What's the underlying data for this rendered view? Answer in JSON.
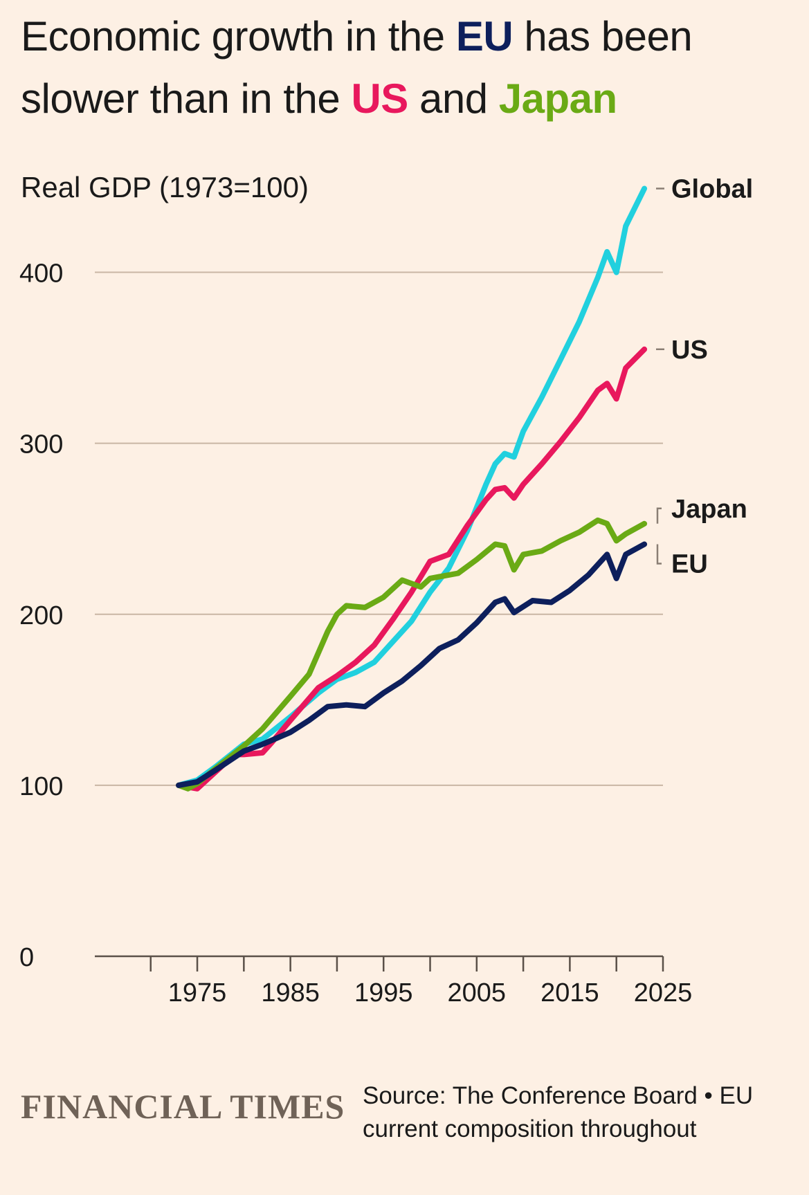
{
  "title": {
    "part1": "Economic growth in the ",
    "eu": "EU",
    "part2": " has been slower than in the ",
    "us": "US",
    "part3": " and ",
    "japan": "Japan"
  },
  "subtitle": "Real GDP (1973=100)",
  "brand": "FINANCIAL TIMES",
  "source": "Source: The Conference Board • EU current composition throughout",
  "colors": {
    "background": "#fdf0e4",
    "eu": "#0d1f5c",
    "us": "#e8185d",
    "japan": "#6aaa15",
    "global": "#21d0de",
    "grid": "#c9b6a4",
    "axis": "#5a5048"
  },
  "chart_data": {
    "type": "line",
    "xlim": [
      1964,
      2025
    ],
    "ylim": [
      0,
      450
    ],
    "xticks": [
      1975,
      1980,
      1985,
      1990,
      1995,
      2000,
      2005,
      2010,
      2015,
      2020,
      2025
    ],
    "xtick_labels": [
      "1975",
      "1985",
      "1995",
      "2005",
      "2015",
      "2025"
    ],
    "yticks": [
      0,
      100,
      200,
      300,
      400
    ],
    "grid": "horizontal",
    "legend": "direct labels at line ends",
    "series": [
      {
        "name": "Global",
        "key": "global",
        "x": [
          1973,
          1975,
          1977,
          1980,
          1982,
          1985,
          1988,
          1990,
          1992,
          1994,
          1996,
          1998,
          2000,
          2002,
          2004,
          2006,
          2007,
          2008,
          2009,
          2010,
          2012,
          2014,
          2016,
          2018,
          2019,
          2020,
          2021,
          2023
        ],
        "values": [
          100,
          103,
          111,
          124,
          127,
          140,
          154,
          162,
          166,
          172,
          184,
          196,
          213,
          227,
          249,
          276,
          288,
          294,
          292,
          307,
          327,
          349,
          371,
          397,
          412,
          400,
          427,
          449
        ]
      },
      {
        "name": "US",
        "key": "us",
        "x": [
          1973,
          1974,
          1975,
          1977,
          1979,
          1980,
          1982,
          1983,
          1985,
          1988,
          1990,
          1992,
          1994,
          1996,
          1998,
          2000,
          2002,
          2004,
          2006,
          2007,
          2008,
          2009,
          2010,
          2012,
          2014,
          2016,
          2018,
          2019,
          2020,
          2021,
          2023
        ],
        "values": [
          100,
          99,
          98,
          108,
          118,
          118,
          119,
          125,
          138,
          157,
          164,
          172,
          182,
          197,
          213,
          231,
          235,
          252,
          267,
          273,
          274,
          268,
          276,
          288,
          301,
          315,
          331,
          335,
          326,
          344,
          355
        ]
      },
      {
        "name": "Japan",
        "key": "japan",
        "x": [
          1973,
          1974,
          1975,
          1977,
          1980,
          1982,
          1985,
          1987,
          1989,
          1990,
          1991,
          1993,
          1995,
          1997,
          1999,
          2000,
          2003,
          2005,
          2007,
          2008,
          2009,
          2010,
          2012,
          2014,
          2016,
          2018,
          2019,
          2020,
          2021,
          2023
        ],
        "values": [
          100,
          98,
          101,
          110,
          123,
          133,
          152,
          165,
          190,
          200,
          205,
          204,
          210,
          220,
          216,
          221,
          224,
          232,
          241,
          240,
          226,
          235,
          237,
          243,
          248,
          255,
          253,
          243,
          247,
          253
        ]
      },
      {
        "name": "EU",
        "key": "eu",
        "x": [
          1973,
          1975,
          1977,
          1980,
          1982,
          1985,
          1987,
          1989,
          1991,
          1993,
          1995,
          1997,
          1999,
          2001,
          2003,
          2005,
          2007,
          2008,
          2009,
          2011,
          2013,
          2015,
          2017,
          2019,
          2020,
          2021,
          2023
        ],
        "values": [
          100,
          102,
          109,
          120,
          124,
          131,
          138,
          146,
          147,
          146,
          154,
          161,
          170,
          180,
          185,
          195,
          207,
          209,
          201,
          208,
          207,
          214,
          223,
          235,
          221,
          235,
          241
        ]
      }
    ],
    "end_labels": [
      {
        "key": "global",
        "text": "Global"
      },
      {
        "key": "us",
        "text": "US"
      },
      {
        "key": "japan",
        "text": "Japan"
      },
      {
        "key": "eu",
        "text": "EU"
      }
    ]
  }
}
